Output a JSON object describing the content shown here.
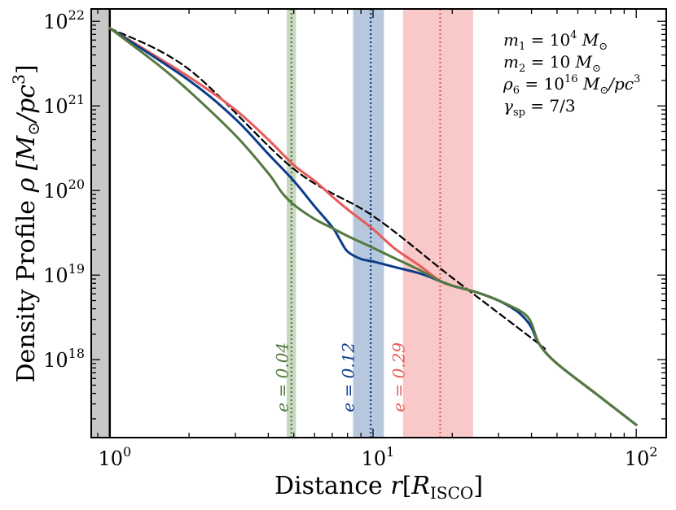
{
  "chart_data": {
    "type": "line",
    "title": "",
    "xlabel": {
      "prefix": "Distance ",
      "var": "r",
      "bracket_open": "[",
      "unit": "R",
      "unit_sub": "ISCO",
      "bracket_close": "]"
    },
    "ylabel": {
      "text": "Density Profile ",
      "var": "ρ",
      "unit": "[M",
      "unit_sub": "⊙",
      "unit_rest": "/pc",
      "unit_sup": "3",
      "unit_close": "]"
    },
    "x_scale": "log",
    "y_scale": "log",
    "xlim": [
      0.85,
      130
    ],
    "ylim": [
      1.2e+17,
      1.4e+22
    ],
    "x_ticks": [
      {
        "value": 1,
        "label": "10",
        "exp": "0"
      },
      {
        "value": 10,
        "label": "10",
        "exp": "1"
      },
      {
        "value": 100,
        "label": "10",
        "exp": "2"
      }
    ],
    "y_ticks": [
      {
        "value": 1e+18,
        "label": "10",
        "exp": "18"
      },
      {
        "value": 1e+19,
        "label": "10",
        "exp": "19"
      },
      {
        "value": 1e+20,
        "label": "10",
        "exp": "20"
      },
      {
        "value": 1e+21,
        "label": "10",
        "exp": "21"
      },
      {
        "value": 1e+22,
        "label": "10",
        "exp": "22"
      }
    ],
    "grey_region": {
      "x_from": 0.85,
      "x_to": 1.0,
      "color": "#c8c8c8"
    },
    "vertical_line": {
      "x": 1.0,
      "color": "#000000"
    },
    "bands": [
      {
        "name": "e-0.04-band",
        "x_from": 4.7,
        "x_to": 5.1,
        "center": 4.9,
        "color": "#557a3f",
        "fill": "#c5d6bd"
      },
      {
        "name": "e-0.12-band",
        "x_from": 8.4,
        "x_to": 11.0,
        "center": 9.8,
        "color": "#0d3d8a",
        "fill": "#b3c4dc"
      },
      {
        "name": "e-0.29-band",
        "x_from": 13.0,
        "x_to": 24.0,
        "center": 18.0,
        "color": "#e85a58",
        "fill": "#f9c6c6"
      }
    ],
    "band_labels": [
      {
        "text": "e = 0.04",
        "color": "#557a3f",
        "x": 4.55,
        "y": 2.4e+17
      },
      {
        "text": "e = 0.12",
        "color": "#0d3d8a",
        "x": 8.1,
        "y": 2.4e+17
      },
      {
        "text": "e = 0.29",
        "color": "#e85a58",
        "x": 12.6,
        "y": 2.4e+17
      }
    ],
    "series": [
      {
        "name": "power-law",
        "color": "#000000",
        "dashed": true,
        "points": [
          [
            1,
            8.3e+21
          ],
          [
            2,
            2.7e+21
          ],
          [
            5,
            1.8e+20
          ],
          [
            10,
            5e+19
          ],
          [
            20,
            9.3e+18
          ],
          [
            40,
            1.8e+18
          ],
          [
            45,
            1.35e+18
          ]
        ]
      },
      {
        "name": "e=0.29",
        "color": "#e85a58",
        "dashed": false,
        "points": [
          [
            1,
            8.3e+21
          ],
          [
            2,
            2.2e+21
          ],
          [
            3,
            9e+20
          ],
          [
            4,
            4e+20
          ],
          [
            5,
            2e+20
          ],
          [
            6,
            1.3e+20
          ],
          [
            7,
            8.5e+19
          ],
          [
            8,
            6e+19
          ],
          [
            10,
            3.5e+19
          ],
          [
            12,
            2.1e+19
          ],
          [
            15,
            1.3e+19
          ],
          [
            18,
            8.5e+18
          ],
          [
            20,
            7.5e+18
          ],
          [
            25,
            6.2e+18
          ],
          [
            30,
            5e+18
          ],
          [
            35,
            3.8e+18
          ],
          [
            38,
            3e+18
          ],
          [
            40,
            2.4e+18
          ],
          [
            43,
            1.5e+18
          ],
          [
            50,
            9e+17
          ],
          [
            70,
            4e+17
          ],
          [
            100,
            1.7e+17
          ]
        ]
      },
      {
        "name": "e=0.12",
        "color": "#0d3d8a",
        "dashed": false,
        "points": [
          [
            1,
            8.3e+21
          ],
          [
            2,
            2e+21
          ],
          [
            3,
            7e+20
          ],
          [
            4,
            2.7e+20
          ],
          [
            5,
            1.3e+20
          ],
          [
            6,
            6.5e+19
          ],
          [
            7,
            3.7e+19
          ],
          [
            7.5,
            2.6e+19
          ],
          [
            8,
            1.9e+19
          ],
          [
            9,
            1.55e+19
          ],
          [
            10,
            1.45e+19
          ],
          [
            12,
            1.25e+19
          ],
          [
            15,
            1.05e+19
          ],
          [
            18,
            8.5e+18
          ],
          [
            20,
            7.5e+18
          ],
          [
            25,
            6.2e+18
          ],
          [
            30,
            5e+18
          ],
          [
            35,
            3.8e+18
          ],
          [
            38,
            3e+18
          ],
          [
            40,
            2.4e+18
          ],
          [
            43,
            1.5e+18
          ],
          [
            50,
            9e+17
          ],
          [
            70,
            4e+17
          ],
          [
            100,
            1.7e+17
          ]
        ]
      },
      {
        "name": "e=0.04",
        "color": "#557a3f",
        "dashed": false,
        "points": [
          [
            1,
            8.3e+21
          ],
          [
            1.5,
            3.2e+21
          ],
          [
            2,
            1.5e+21
          ],
          [
            3,
            4.5e+20
          ],
          [
            4,
            1.6e+20
          ],
          [
            4.5,
            9.5e+19
          ],
          [
            5,
            6.8e+19
          ],
          [
            6,
            4.6e+19
          ],
          [
            7,
            3.6e+19
          ],
          [
            8,
            2.9e+19
          ],
          [
            10,
            2.1e+19
          ],
          [
            12,
            1.6e+19
          ],
          [
            15,
            1.15e+19
          ],
          [
            18,
            8.5e+18
          ],
          [
            20,
            7.5e+18
          ],
          [
            25,
            6.2e+18
          ],
          [
            30,
            5e+18
          ],
          [
            35,
            4e+18
          ],
          [
            38,
            3.4e+18
          ],
          [
            40,
            2.7e+18
          ],
          [
            43,
            1.5e+18
          ],
          [
            50,
            9e+17
          ],
          [
            70,
            4e+17
          ],
          [
            100,
            1.7e+17
          ]
        ]
      }
    ],
    "legend_lines": [
      {
        "var": "m",
        "sub": "1",
        "eq": " = 10",
        "sup": "4",
        "unit": " M",
        "unit_sub": "⊙",
        "tail": ""
      },
      {
        "var": "m",
        "sub": "2",
        "eq": " = 10 ",
        "sup": "",
        "unit": "M",
        "unit_sub": "⊙",
        "tail": ""
      },
      {
        "var": "ρ",
        "sub": "6",
        "eq": "  = 10",
        "sup": "16",
        "unit": " M",
        "unit_sub": "⊙",
        "tail": "/pc",
        "tail_sup": "3"
      },
      {
        "var": "γ",
        "sub": "sp",
        "eq": " = 7/3",
        "sup": "",
        "unit": "",
        "unit_sub": "",
        "tail": ""
      }
    ]
  }
}
